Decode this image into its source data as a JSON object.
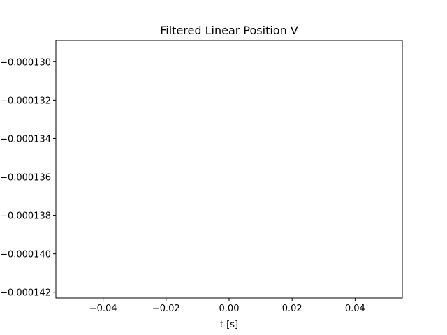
{
  "chart_data": {
    "type": "line",
    "title": "Filtered Linear Position V",
    "xlabel": "t [s]",
    "ylabel": "",
    "xlim": [
      -0.055,
      0.055
    ],
    "ylim": [
      -0.0001423,
      -0.0001289
    ],
    "x_ticks": [
      -0.04,
      -0.02,
      0.0,
      0.02,
      0.04
    ],
    "x_tick_labels": [
      "−0.04",
      "−0.02",
      "0.00",
      "0.02",
      "0.04"
    ],
    "y_ticks": [
      -0.00013,
      -0.000132,
      -0.000134,
      -0.000136,
      -0.000138,
      -0.00014,
      -0.000142
    ],
    "y_tick_labels": [
      "−0.000130",
      "−0.000132",
      "−0.000134",
      "−0.000136",
      "−0.000138",
      "−0.000140",
      "−0.000142"
    ],
    "grid": false,
    "series": []
  }
}
